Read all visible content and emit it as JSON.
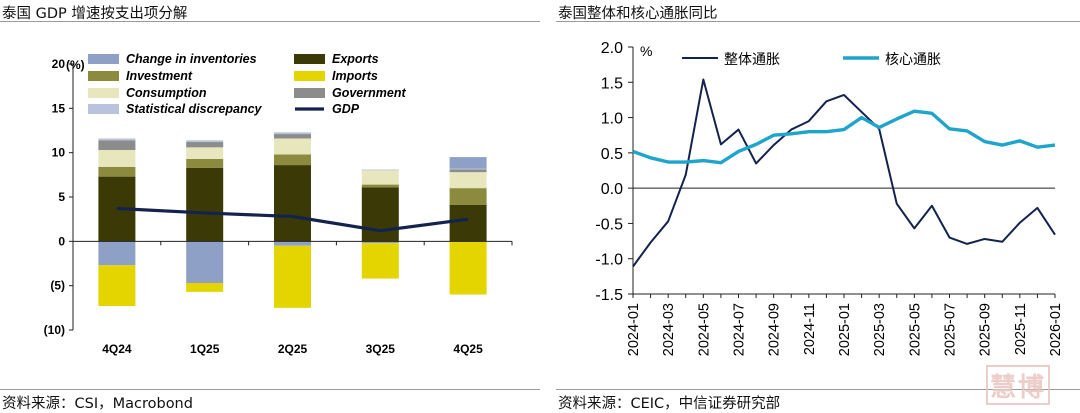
{
  "left_panel": {
    "title": "泰国 GDP 增速按支出项分解",
    "source": "资料来源：CSI，Macrobond"
  },
  "right_panel": {
    "title": "泰国整体和核心通胀同比",
    "source": "资料来源：CEIC，中信证券研究部"
  },
  "watermark": "慧博",
  "chart_data": [
    {
      "type": "stacked-bar-with-line",
      "title": "泰国 GDP 增速按支出项分解",
      "unit": "(%)",
      "categories": [
        "4Q24",
        "1Q25",
        "2Q25",
        "3Q25",
        "4Q25"
      ],
      "ylim": [
        -10,
        20
      ],
      "yticks": [
        "(10)",
        "(5)",
        "0",
        "5",
        "10",
        "15",
        "20"
      ],
      "series": [
        {
          "name": "Exports",
          "color": "#3b3a07",
          "values": [
            7.3,
            8.3,
            8.6,
            6.1,
            4.1
          ]
        },
        {
          "name": "Investment",
          "color": "#8b8a3e",
          "values": [
            1.1,
            1.0,
            1.2,
            0.3,
            1.9
          ]
        },
        {
          "name": "Consumption",
          "color": "#e7e6bd",
          "values": [
            1.9,
            1.3,
            1.8,
            1.6,
            1.8
          ]
        },
        {
          "name": "Government",
          "color": "#8c8c8c",
          "values": [
            1.1,
            0.6,
            0.5,
            0.0,
            0.3
          ]
        },
        {
          "name": "Statistical discrepancy",
          "color": "#b9c3de",
          "values": [
            0.2,
            0.2,
            0.2,
            0.1,
            0.1
          ]
        },
        {
          "name": "Change in inventories",
          "color": "#8ea0c6",
          "values": [
            -2.7,
            -4.7,
            -0.5,
            -0.2,
            1.3
          ]
        },
        {
          "name": "Imports",
          "color": "#e4d400",
          "values": [
            -4.6,
            -1.0,
            -7.0,
            -4.0,
            -6.0
          ]
        },
        {
          "name": "GDP",
          "type": "line",
          "color": "#14234e",
          "values": [
            3.7,
            3.2,
            2.8,
            1.2,
            2.5
          ]
        }
      ],
      "legend": [
        {
          "name": "Change in inventories",
          "color": "#8ea0c6",
          "kind": "box"
        },
        {
          "name": "Exports",
          "color": "#3b3a07",
          "kind": "box"
        },
        {
          "name": "Investment",
          "color": "#8b8a3e",
          "kind": "box"
        },
        {
          "name": "Imports",
          "color": "#e4d400",
          "kind": "box"
        },
        {
          "name": "Consumption",
          "color": "#e7e6bd",
          "kind": "box"
        },
        {
          "name": "Government",
          "color": "#8c8c8c",
          "kind": "box"
        },
        {
          "name": "Statistical discrepancy",
          "color": "#b9c3de",
          "kind": "box"
        },
        {
          "name": "GDP",
          "color": "#14234e",
          "kind": "line"
        }
      ]
    },
    {
      "type": "line",
      "title": "泰国整体和核心通胀同比",
      "unit": "%",
      "ylim": [
        -1.5,
        2.0
      ],
      "yticks": [
        "-1.5",
        "-1.0",
        "-0.5",
        "0.0",
        "0.5",
        "1.0",
        "1.5",
        "2.0"
      ],
      "x": [
        "2024-01",
        "2024-02",
        "2024-03",
        "2024-04",
        "2024-05",
        "2024-06",
        "2024-07",
        "2024-08",
        "2024-09",
        "2024-10",
        "2024-11",
        "2024-12",
        "2025-01",
        "2025-02",
        "2025-03",
        "2025-04",
        "2025-05",
        "2025-06",
        "2025-07",
        "2025-08",
        "2025-09",
        "2025-10",
        "2025-11",
        "2025-12",
        "2026-01"
      ],
      "xticks": [
        "2024-01",
        "2024-03",
        "2024-05",
        "2024-07",
        "2024-09",
        "2024-11",
        "2025-01",
        "2025-03",
        "2025-05",
        "2025-07",
        "2025-09",
        "2025-11",
        "2026-01"
      ],
      "series": [
        {
          "name": "整体通胀",
          "color": "#14234e",
          "values": [
            -1.11,
            -0.77,
            -0.47,
            0.19,
            1.54,
            0.62,
            0.83,
            0.35,
            0.61,
            0.83,
            0.95,
            1.23,
            1.32,
            1.08,
            0.84,
            -0.22,
            -0.57,
            -0.25,
            -0.7,
            -0.79,
            -0.72,
            -0.76,
            -0.49,
            -0.28,
            -0.66
          ]
        },
        {
          "name": "核心通胀",
          "color": "#1fa5cb",
          "values": [
            0.52,
            0.43,
            0.37,
            0.37,
            0.39,
            0.36,
            0.52,
            0.62,
            0.75,
            0.77,
            0.8,
            0.8,
            0.83,
            1.0,
            0.86,
            0.98,
            1.09,
            1.06,
            0.84,
            0.81,
            0.66,
            0.61,
            0.67,
            0.58,
            0.61
          ]
        }
      ]
    }
  ]
}
